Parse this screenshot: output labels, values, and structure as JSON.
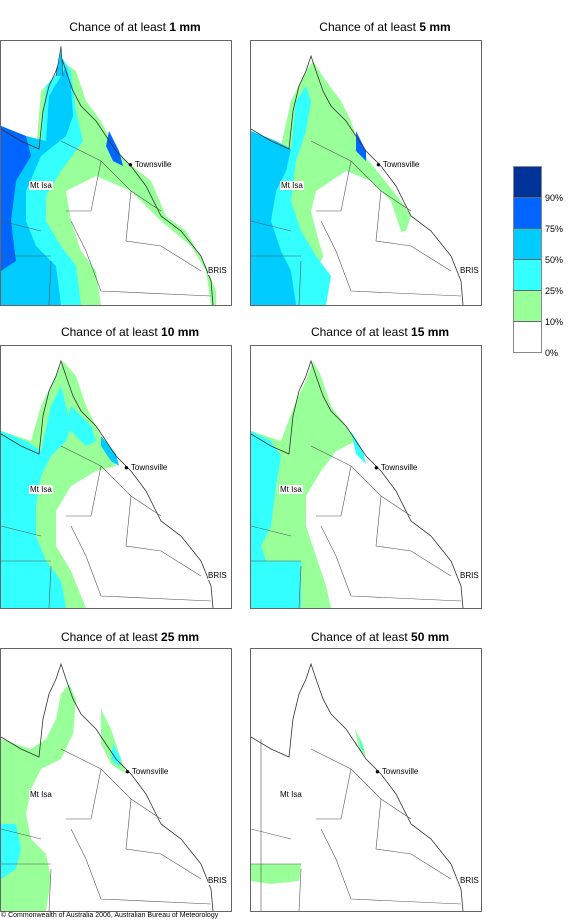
{
  "panels": [
    {
      "title_prefix": "Chance of at least ",
      "amount": "1 mm"
    },
    {
      "title_prefix": "Chance of at least ",
      "amount": "5 mm"
    },
    {
      "title_prefix": "Chance of at least ",
      "amount": "10 mm"
    },
    {
      "title_prefix": "Chance of at least ",
      "amount": "15 mm"
    },
    {
      "title_prefix": "Chance of at least ",
      "amount": "25 mm"
    },
    {
      "title_prefix": "Chance of at least ",
      "amount": "50 mm"
    }
  ],
  "places": {
    "townsville": "Townsville",
    "mt_isa": "Mt Isa",
    "brisbane": "BRIS"
  },
  "legend": {
    "labels": [
      "90%",
      "75%",
      "50%",
      "25%",
      "10%",
      "0%"
    ],
    "colors": [
      "#003399",
      "#0066ff",
      "#00ccff",
      "#33ffff",
      "#99ff99",
      "#ffffff"
    ]
  },
  "copyright": "© Commonwealth of Australia 2006, Australian Bureau of Meteorology"
}
